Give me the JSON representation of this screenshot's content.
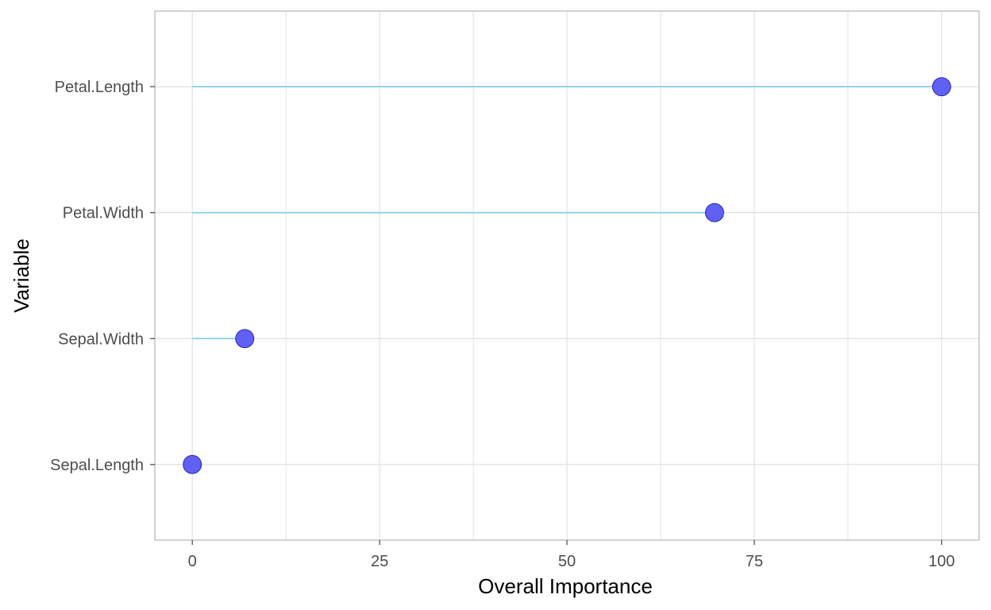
{
  "chart_data": {
    "type": "lollipop",
    "title": "",
    "xlabel": "Overall Importance",
    "ylabel": "Variable",
    "xlim": [
      -5,
      105
    ],
    "x_ticks": [
      0,
      25,
      50,
      75,
      100
    ],
    "x_tick_labels": [
      "0",
      "25",
      "50",
      "75",
      "100"
    ],
    "categories": [
      "Petal.Length",
      "Petal.Width",
      "Sepal.Width",
      "Sepal.Length"
    ],
    "values": [
      100,
      69.7,
      7,
      0
    ],
    "grid": true,
    "legend": "none",
    "colors": {
      "stem": "#87ceeb",
      "point_fill": "#6060f5",
      "point_stroke": "#2020a0",
      "grid": "#dedede",
      "panel_border": "#b3b3b3"
    }
  }
}
